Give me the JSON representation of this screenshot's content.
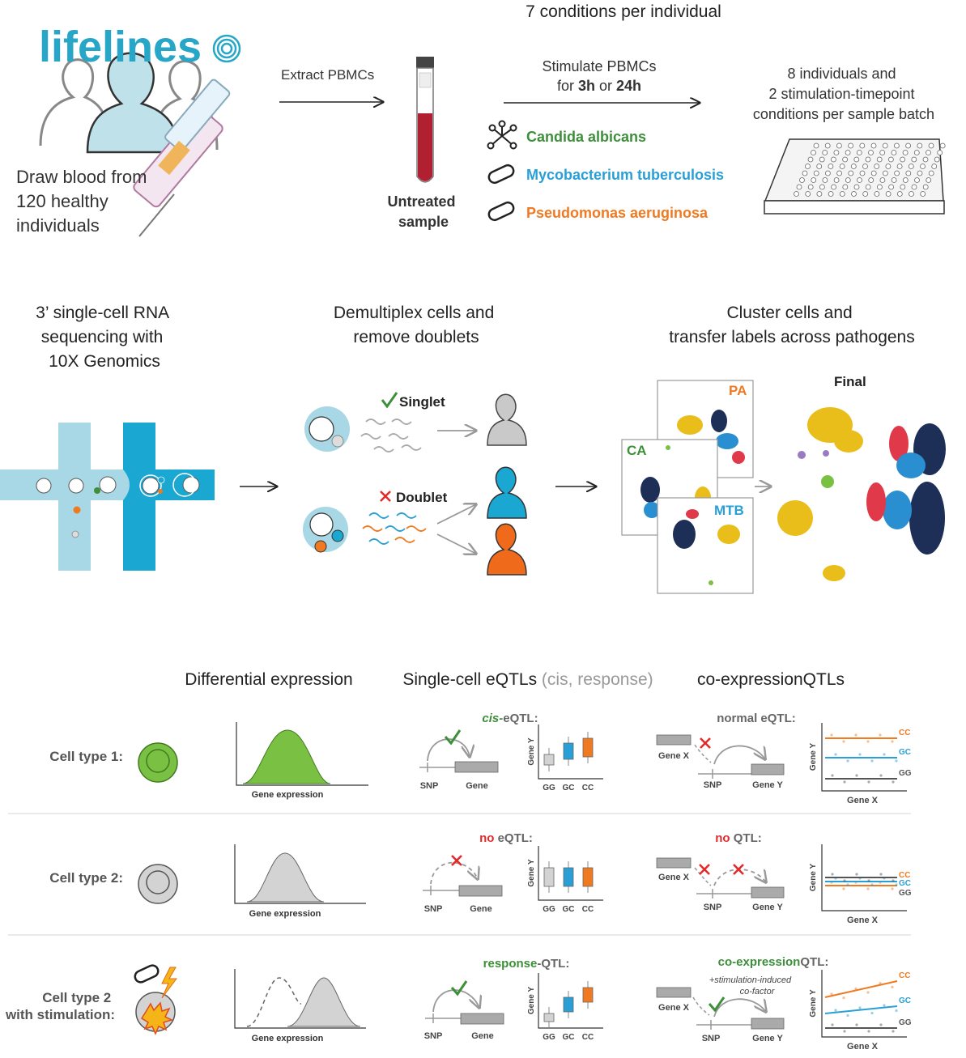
{
  "colors": {
    "teal": "#27a6c8",
    "dark_teal": "#1aa7d2",
    "light_teal": "#a8d8e6",
    "green": "#3d8f3a",
    "blue": "#2a9fd6",
    "orange": "#f07a22",
    "red": "#e12b2b",
    "gray_box": "#d3d3d3",
    "plot_green": "#7ac143"
  },
  "top": {
    "logo": "lifelines",
    "draw_blood": [
      "Draw blood from",
      "120 healthy",
      "individuals"
    ],
    "extract": "Extract PBMCs",
    "untreated": [
      "Untreated",
      "sample"
    ],
    "conditions_title": "7 conditions per individual",
    "stimulate": [
      "Stimulate PBMCs",
      "for",
      "3h",
      "or",
      "24h"
    ],
    "pathogens": [
      "Candida albicans",
      "Mycobacterium tuberculosis",
      "Pseudomonas aeruginosa"
    ],
    "batch": [
      "8 individuals and",
      "2 stimulation-timepoint",
      "conditions per sample batch"
    ]
  },
  "middle": {
    "seq_title": [
      "3’ single-cell RNA",
      "sequencing with",
      "10X Genomics"
    ],
    "demux_title": [
      "Demultiplex cells and",
      "remove doublets"
    ],
    "singlet": "Singlet",
    "doublet": "Doublet",
    "cluster_title": [
      "Cluster cells and",
      "transfer labels across pathogens"
    ],
    "final": "Final",
    "panels": [
      "PA",
      "CA",
      "MTB"
    ]
  },
  "bottom": {
    "col_diff": "Differential expression",
    "col_eqtl": "Single-cell eQTLs",
    "col_eqtl_sub": "(cis, response)",
    "col_coexp": "co-expressionQTLs",
    "rows": [
      {
        "label": [
          "Cell type 1:"
        ],
        "eqtl_title_a": "cis-",
        "eqtl_title_b": "eQTL:",
        "co_title_a": "normal eQTL:",
        "co_title_b": ""
      },
      {
        "label": [
          "Cell type 2:"
        ],
        "eqtl_title_a": "no",
        "eqtl_title_b": " eQTL:",
        "co_title_a": "no",
        "co_title_b": " QTL:"
      },
      {
        "label": [
          "Cell type 2",
          "with stimulation:"
        ],
        "eqtl_title_a": "response",
        "eqtl_title_b": "-QTL:",
        "co_title_a": "co-expression",
        "co_title_b": "QTL:"
      }
    ],
    "gene_expression": "Gene expression",
    "snp": "SNP",
    "gene": "Gene",
    "gene_x": "Gene X",
    "gene_y": "Gene Y",
    "genotypes": [
      "GG",
      "GC",
      "CC"
    ],
    "cofactor": [
      "+stimulation-induced",
      "co-factor"
    ]
  }
}
